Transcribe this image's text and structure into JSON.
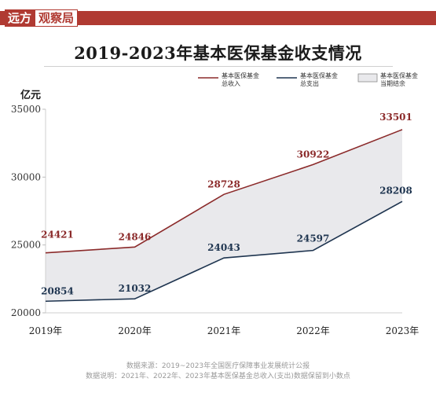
{
  "brand": {
    "left": "远方",
    "right": "观察局"
  },
  "chart_data": {
    "type": "area",
    "title": "2019-2023年基本医保基金收支情况",
    "ylabel": "亿元",
    "xlabel": "",
    "categories": [
      "2019年",
      "2020年",
      "2021年",
      "2022年",
      "2023年"
    ],
    "ylim": [
      20000,
      35000
    ],
    "yticks": [
      20000,
      25000,
      30000,
      35000
    ],
    "grid": false,
    "legend_position": "top-right",
    "series": [
      {
        "name": "基本医保基金总收入",
        "values": [
          24421,
          24846,
          28728,
          30922,
          33501
        ],
        "color": "#8b2a2a"
      },
      {
        "name": "基本医保基金总支出",
        "values": [
          20854,
          21032,
          24043,
          24597,
          28208
        ],
        "color": "#1f3550"
      }
    ],
    "fill": {
      "name": "基本医保基金当期结余",
      "color": "#e9e9ec"
    }
  },
  "legend": {
    "income": [
      "基本医保基金",
      "总收入"
    ],
    "expense": [
      "基本医保基金",
      "总支出"
    ],
    "balance": [
      "基本医保基金",
      "当期结余"
    ]
  },
  "footer": {
    "line1": "数据来源：2019~2023年全国医疗保障事业发展统计公报",
    "line2": "数据说明：2021年、2022年、2023年基本医保基金总收入(支出)数据保留到小数点"
  }
}
